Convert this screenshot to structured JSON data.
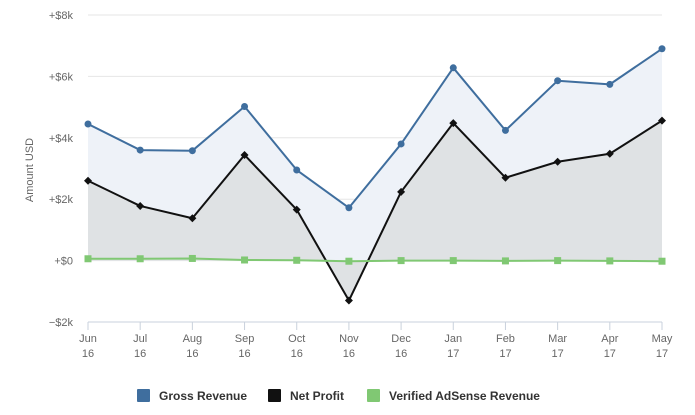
{
  "chart_data": {
    "type": "area",
    "categories": [
      [
        "Jun",
        "16"
      ],
      [
        "Jul",
        "16"
      ],
      [
        "Aug",
        "16"
      ],
      [
        "Sep",
        "16"
      ],
      [
        "Oct",
        "16"
      ],
      [
        "Nov",
        "16"
      ],
      [
        "Dec",
        "16"
      ],
      [
        "Jan",
        "17"
      ],
      [
        "Feb",
        "17"
      ],
      [
        "Mar",
        "17"
      ],
      [
        "Apr",
        "17"
      ],
      [
        "May",
        "17"
      ]
    ],
    "ylabel": "Amount USD",
    "ylim": [
      -2000,
      8000
    ],
    "yticks": [
      -2000,
      0,
      2000,
      4000,
      6000,
      8000
    ],
    "ytick_labels": [
      "−$2k",
      "+$0",
      "+$2k",
      "+$4k",
      "+$6k",
      "+$8k"
    ],
    "grid": true,
    "legend_position": "bottom-center",
    "series": [
      {
        "name": "Gross Revenue",
        "color": "#3f6e9e",
        "fill": "#eef2f8",
        "marker": "circle",
        "values": [
          4450,
          3600,
          3580,
          5020,
          2950,
          1720,
          3800,
          6280,
          4240,
          5860,
          5740,
          6900
        ]
      },
      {
        "name": "Net Profit",
        "color": "#111111",
        "fill": "#dfe2e4",
        "marker": "diamond",
        "values": [
          2600,
          1780,
          1380,
          3440,
          1660,
          -1300,
          2240,
          4480,
          2700,
          3220,
          3480,
          4560
        ]
      },
      {
        "name": "Verified AdSense Revenue",
        "color": "#80c873",
        "fill": "none",
        "marker": "square",
        "values": [
          60,
          60,
          70,
          20,
          10,
          -20,
          0,
          0,
          -10,
          0,
          -10,
          -20
        ]
      }
    ]
  }
}
